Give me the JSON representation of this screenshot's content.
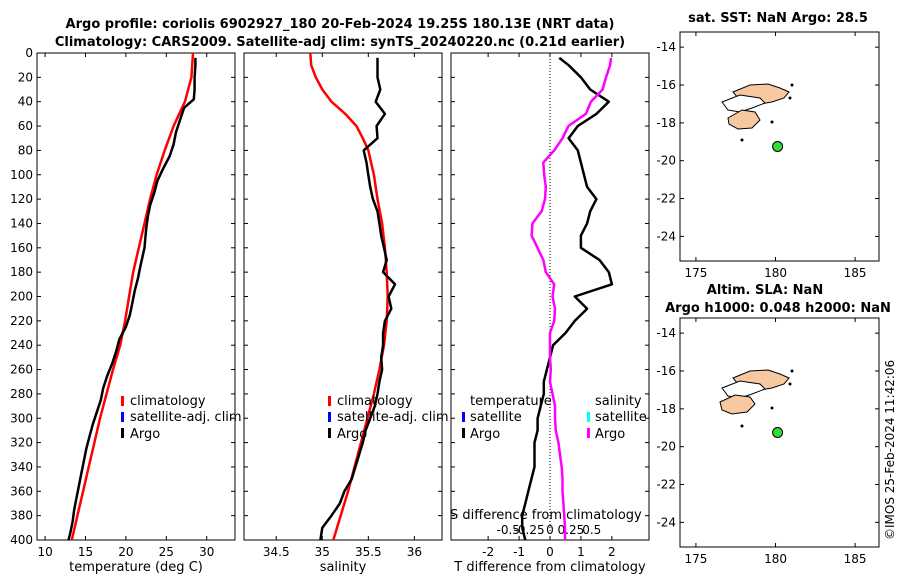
{
  "header": {
    "line1": "Argo profile: coriolis 6902927_180 20-Feb-2024 19.25S 180.13E (NRT data)",
    "line2": "Climatology: CARS2009. Satellite-adj clim: synTS_20240220.nc (0.21d earlier)"
  },
  "colors": {
    "climatology": "#ff0000",
    "satellite": "#0000ff",
    "argo": "#000000",
    "argo_salinity": "#ff00ff",
    "satellite_salinity": "#00ffff",
    "land": "#f8c8a0",
    "marker": "#33dd33"
  },
  "depth_axis": {
    "ticks": [
      0,
      20,
      40,
      60,
      80,
      100,
      120,
      140,
      160,
      180,
      200,
      220,
      240,
      260,
      280,
      300,
      320,
      340,
      360,
      380,
      400
    ],
    "range": [
      0,
      400
    ]
  },
  "legends": {
    "climatology": "climatology",
    "satellite_adj": "satellite-adj. clim",
    "argo": "Argo",
    "temperature_head": "temperature",
    "salinity_head": "salinity",
    "satellite": "satellite"
  },
  "chart_data": [
    {
      "type": "line",
      "name": "temperature",
      "xlabel": "temperature (deg C)",
      "xlim": [
        9,
        33.5
      ],
      "ylim": [
        0,
        400
      ],
      "xticks": [
        10,
        15,
        20,
        25,
        30
      ],
      "series": [
        {
          "name": "climatology",
          "depth": [
            0,
            20,
            40,
            60,
            80,
            100,
            120,
            140,
            160,
            180,
            200,
            220,
            240,
            260,
            280,
            300,
            320,
            340,
            360,
            380,
            400
          ],
          "values": [
            28.3,
            28.1,
            27.3,
            25.9,
            24.8,
            23.8,
            23.0,
            22.3,
            21.6,
            20.9,
            20.4,
            19.9,
            19.3,
            18.4,
            17.6,
            16.8,
            16.1,
            15.4,
            14.7,
            14.0,
            13.3
          ]
        },
        {
          "name": "Argo",
          "depth": [
            4,
            10,
            20,
            30,
            38,
            45,
            55,
            65,
            75,
            85,
            95,
            105,
            115,
            125,
            135,
            145,
            160,
            175,
            185,
            195,
            205,
            215,
            225,
            235,
            245,
            255,
            265,
            275,
            285,
            295,
            305,
            315,
            325,
            335,
            345,
            355,
            365,
            375,
            385,
            395,
            400
          ],
          "values": [
            28.6,
            28.6,
            28.5,
            28.5,
            28.4,
            27.2,
            26.7,
            26.2,
            25.9,
            25.4,
            24.6,
            23.9,
            23.5,
            23.0,
            22.7,
            22.5,
            22.3,
            21.8,
            21.5,
            21.1,
            20.8,
            20.5,
            20.0,
            19.2,
            18.8,
            18.3,
            17.7,
            17.2,
            16.9,
            16.4,
            15.9,
            15.5,
            15.1,
            14.8,
            14.5,
            14.2,
            13.9,
            13.6,
            13.4,
            13.1,
            12.9
          ]
        }
      ]
    },
    {
      "type": "line",
      "name": "salinity",
      "xlabel": "salinity",
      "xlim": [
        34.15,
        36.3
      ],
      "ylim": [
        0,
        400
      ],
      "xticks": [
        34.5,
        35,
        35.5,
        36
      ],
      "xtick_labels": [
        "34.5",
        "35",
        "35.5",
        "36"
      ],
      "series": [
        {
          "name": "climatology",
          "depth": [
            0,
            10,
            20,
            30,
            40,
            50,
            60,
            70,
            80,
            100,
            120,
            140,
            160,
            180,
            200,
            220,
            240,
            260,
            280,
            300,
            320,
            340,
            360,
            380,
            400
          ],
          "values": [
            34.87,
            34.88,
            34.93,
            35.0,
            35.1,
            35.25,
            35.37,
            35.44,
            35.5,
            35.56,
            35.6,
            35.65,
            35.68,
            35.7,
            35.71,
            35.7,
            35.67,
            35.62,
            35.56,
            35.49,
            35.42,
            35.35,
            35.28,
            35.2,
            35.12
          ]
        },
        {
          "name": "Argo",
          "depth": [
            4,
            10,
            20,
            30,
            40,
            50,
            60,
            70,
            80,
            90,
            100,
            110,
            120,
            130,
            140,
            150,
            160,
            170,
            180,
            190,
            200,
            210,
            220,
            230,
            240,
            250,
            260,
            270,
            280,
            290,
            300,
            310,
            320,
            330,
            340,
            350,
            360,
            370,
            380,
            390,
            400
          ],
          "values": [
            35.6,
            35.6,
            35.6,
            35.63,
            35.58,
            35.68,
            35.59,
            35.6,
            35.45,
            35.48,
            35.5,
            35.52,
            35.55,
            35.6,
            35.62,
            35.64,
            35.67,
            35.7,
            35.66,
            35.79,
            35.72,
            35.75,
            35.68,
            35.66,
            35.66,
            35.64,
            35.65,
            35.62,
            35.6,
            35.57,
            35.52,
            35.47,
            35.44,
            35.4,
            35.36,
            35.32,
            35.24,
            35.19,
            35.1,
            35.0,
            34.98
          ]
        }
      ]
    },
    {
      "type": "line",
      "name": "difference",
      "xlabel": "T difference from climatology",
      "top_label": "S difference from climatology",
      "xlim": [
        -3.2,
        3.2
      ],
      "ylim": [
        0,
        400
      ],
      "xticks": [
        -2,
        -1,
        0,
        1,
        2
      ],
      "top_ticks": [
        -0.5,
        -0.25,
        0,
        0.25,
        0.5
      ],
      "top_tick_labels": [
        "-0.5",
        "-0.25",
        "0",
        "0.25",
        "0.5"
      ],
      "series": [
        {
          "name": "T difference (Argo)",
          "axis": "T",
          "depth": [
            4,
            10,
            20,
            30,
            40,
            50,
            60,
            70,
            80,
            90,
            100,
            110,
            120,
            130,
            140,
            150,
            160,
            170,
            180,
            190,
            200,
            210,
            220,
            230,
            240,
            250,
            260,
            270,
            280,
            290,
            300,
            310,
            320,
            330,
            340,
            350,
            360,
            370,
            380,
            390,
            400
          ],
          "values": [
            0.3,
            0.6,
            1.0,
            1.3,
            1.9,
            1.5,
            0.9,
            0.6,
            0.9,
            1.0,
            1.1,
            1.2,
            1.5,
            1.3,
            1.2,
            1.0,
            1.0,
            1.6,
            1.9,
            2.0,
            0.8,
            1.2,
            0.8,
            0.5,
            0.1,
            0.0,
            -0.1,
            -0.2,
            -0.2,
            -0.3,
            -0.4,
            -0.4,
            -0.5,
            -0.5,
            -0.5,
            -0.6,
            -0.7,
            -0.8,
            -0.9,
            -0.9,
            -0.8
          ]
        },
        {
          "name": "S difference (Argo)",
          "axis": "S",
          "depth": [
            4,
            10,
            20,
            30,
            40,
            50,
            60,
            70,
            80,
            90,
            100,
            110,
            120,
            130,
            140,
            150,
            160,
            170,
            180,
            190,
            200,
            210,
            220,
            230,
            240,
            250,
            260,
            270,
            280,
            290,
            300,
            310,
            320,
            330,
            340,
            350,
            360,
            370,
            380,
            390,
            400
          ],
          "values": [
            0.73,
            0.72,
            0.67,
            0.63,
            0.49,
            0.43,
            0.22,
            0.15,
            0.05,
            -0.08,
            -0.07,
            -0.05,
            -0.06,
            -0.1,
            -0.21,
            -0.22,
            -0.15,
            -0.08,
            -0.05,
            0.05,
            0.03,
            0.06,
            0.05,
            0.0,
            0.0,
            0.0,
            0.01,
            0.0,
            0.03,
            0.06,
            0.06,
            0.07,
            0.1,
            0.12,
            0.14,
            0.15,
            0.15,
            0.16,
            0.17,
            0.18,
            0.18
          ]
        }
      ]
    }
  ],
  "maps": [
    {
      "name": "sst-map",
      "title": "sat. SST: NaN Argo: 28.5",
      "xticks": [
        175,
        180,
        185
      ],
      "yticks": [
        -14,
        -16,
        -18,
        -20,
        -22,
        -24
      ],
      "marker": {
        "lon": 180.13,
        "lat": -19.25
      }
    },
    {
      "name": "sla-map",
      "title": "Altim. SLA: NaN",
      "title2": "Argo h1000: 0.048 h2000: NaN",
      "xticks": [
        175,
        180,
        185
      ],
      "yticks": [
        -14,
        -16,
        -18,
        -20,
        -22,
        -24
      ],
      "marker": {
        "lon": 180.13,
        "lat": -19.25
      }
    }
  ],
  "footer": {
    "stamp": "©IMOS 25-Feb-2024 11:42:06"
  }
}
